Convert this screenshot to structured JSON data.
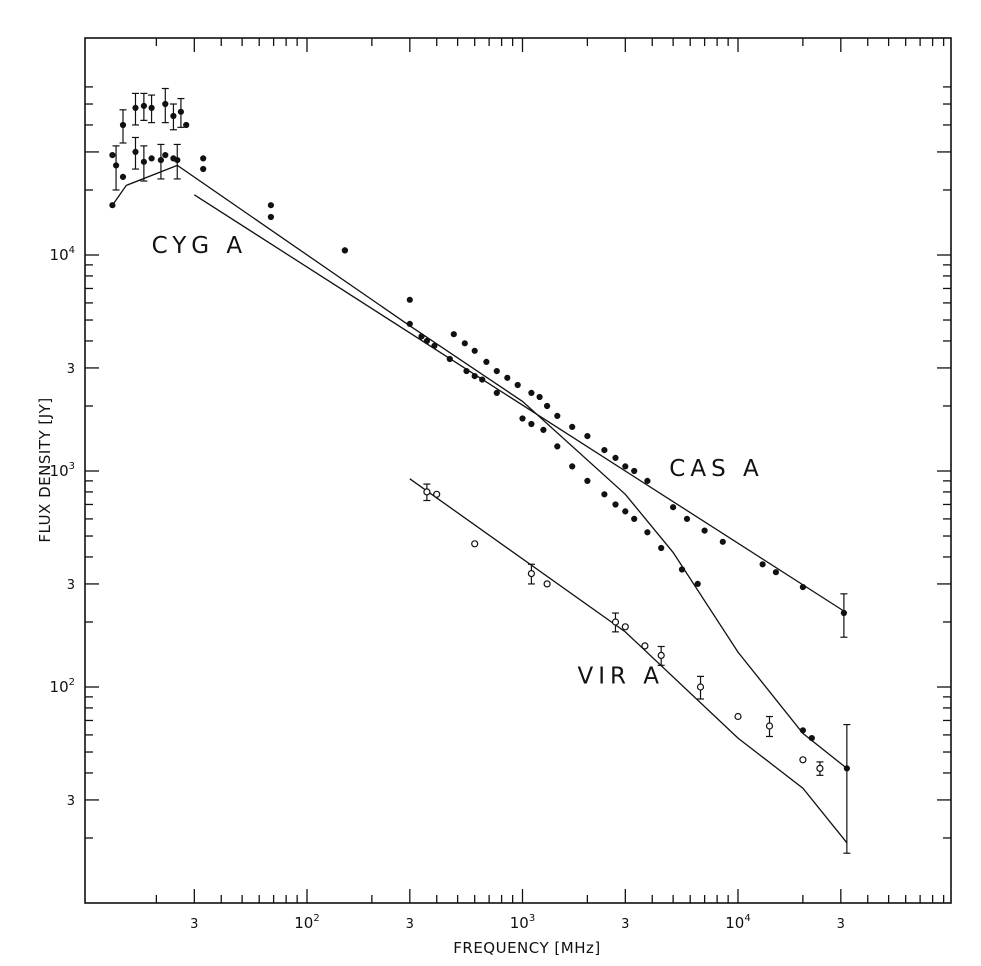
{
  "chart_data": {
    "type": "scatter",
    "xlabel": "FREQUENCY [MHz]",
    "ylabel": "FLUX DENSITY [JY]",
    "xscale": "log",
    "yscale": "log",
    "xlim": [
      12,
      1000000
    ],
    "ylim": [
      14,
      60000
    ],
    "grid": false,
    "axis_colors": {
      "ink": "#111111",
      "background": "#ffffff"
    },
    "x_major_ticks": [
      {
        "value": 30,
        "label": "3"
      },
      {
        "value": 100,
        "label": "10",
        "exp": "2"
      },
      {
        "value": 300,
        "label": "3"
      },
      {
        "value": 1000,
        "label": "10",
        "exp": "3"
      },
      {
        "value": 3000,
        "label": "3"
      },
      {
        "value": 10000,
        "label": "10",
        "exp": "4"
      },
      {
        "value": 30000,
        "label": "3"
      }
    ],
    "y_major_ticks": [
      {
        "value": 30,
        "label": "3"
      },
      {
        "value": 100,
        "label": "10",
        "exp": "2"
      },
      {
        "value": 300,
        "label": "3"
      },
      {
        "value": 1000,
        "label": "10",
        "exp": "3"
      },
      {
        "value": 3000,
        "label": "3"
      },
      {
        "value": 10000,
        "label": "10",
        "exp": "4"
      }
    ],
    "series": [
      {
        "name": "CAS A",
        "marker": "filled",
        "label_at": [
          4800,
          950
        ],
        "fit": [
          [
            30,
            19000
          ],
          [
            32000,
            220
          ]
        ],
        "points": [
          [
            12.5,
            29000
          ],
          [
            14,
            40000
          ],
          [
            16,
            48000
          ],
          [
            17.5,
            49000
          ],
          [
            19,
            48000
          ],
          [
            22,
            50000
          ],
          [
            24,
            44000
          ],
          [
            26,
            46000
          ],
          [
            27.5,
            40000
          ],
          [
            33,
            28000
          ],
          [
            68,
            17000
          ],
          [
            150,
            10500
          ],
          [
            300,
            6200
          ],
          [
            480,
            4300
          ],
          [
            540,
            3900
          ],
          [
            600,
            3600
          ],
          [
            680,
            3200
          ],
          [
            760,
            2900
          ],
          [
            850,
            2700
          ],
          [
            950,
            2500
          ],
          [
            1100,
            2300
          ],
          [
            1200,
            2200
          ],
          [
            1300,
            2000
          ],
          [
            1450,
            1800
          ],
          [
            1700,
            1600
          ],
          [
            2000,
            1450
          ],
          [
            2400,
            1250
          ],
          [
            2700,
            1150
          ],
          [
            3000,
            1050
          ],
          [
            3300,
            1000
          ],
          [
            3800,
            900
          ],
          [
            5000,
            680
          ],
          [
            5800,
            600
          ],
          [
            7000,
            530
          ],
          [
            8500,
            470
          ],
          [
            13000,
            370
          ],
          [
            15000,
            340
          ],
          [
            20000,
            290
          ],
          [
            31000,
            220
          ]
        ],
        "error_bars": [
          [
            14,
            40000,
            7000
          ],
          [
            16,
            48000,
            8000
          ],
          [
            17.5,
            49000,
            7000
          ],
          [
            19,
            48000,
            7000
          ],
          [
            22,
            50000,
            9000
          ],
          [
            24,
            44000,
            6000
          ],
          [
            26,
            46000,
            7000
          ],
          [
            31000,
            220,
            50
          ]
        ]
      },
      {
        "name": "CYG A",
        "marker": "filled",
        "label_at": [
          19,
          10200
        ],
        "fit": [
          [
            12.5,
            17000
          ],
          [
            14.5,
            21000
          ],
          [
            25,
            26000
          ],
          [
            300,
            4700
          ],
          [
            1000,
            2100
          ],
          [
            3000,
            780
          ],
          [
            5000,
            420
          ],
          [
            10000,
            145
          ],
          [
            20000,
            61
          ],
          [
            32000,
            42
          ]
        ],
        "points": [
          [
            12.5,
            17000
          ],
          [
            13,
            26000
          ],
          [
            14,
            23000
          ],
          [
            16,
            30000
          ],
          [
            17.5,
            27000
          ],
          [
            19,
            28000
          ],
          [
            21,
            27500
          ],
          [
            22,
            29000
          ],
          [
            24,
            28000
          ],
          [
            25,
            27500
          ],
          [
            33,
            25000
          ],
          [
            68,
            15000
          ],
          [
            150,
            10500
          ],
          [
            300,
            4800
          ],
          [
            340,
            4200
          ],
          [
            360,
            4000
          ],
          [
            390,
            3800
          ],
          [
            460,
            3300
          ],
          [
            550,
            2900
          ],
          [
            600,
            2750
          ],
          [
            650,
            2650
          ],
          [
            760,
            2300
          ],
          [
            1000,
            1750
          ],
          [
            1100,
            1650
          ],
          [
            1250,
            1550
          ],
          [
            1450,
            1300
          ],
          [
            1700,
            1050
          ],
          [
            2000,
            900
          ],
          [
            2400,
            780
          ],
          [
            2700,
            700
          ],
          [
            3000,
            650
          ],
          [
            3300,
            600
          ],
          [
            3800,
            520
          ],
          [
            4400,
            440
          ],
          [
            5500,
            350
          ],
          [
            6500,
            300
          ],
          [
            20000,
            63
          ],
          [
            22000,
            58
          ],
          [
            32000,
            42
          ]
        ],
        "error_bars": [
          [
            13,
            26000,
            6000
          ],
          [
            16,
            30000,
            5000
          ],
          [
            17.5,
            27000,
            5000
          ],
          [
            21,
            27500,
            5000
          ],
          [
            25,
            27500,
            5000
          ],
          [
            32000,
            42,
            25
          ]
        ]
      },
      {
        "name": "VIR A",
        "marker": "open",
        "label_at": [
          1800,
          104
        ],
        "fit": [
          [
            300,
            920
          ],
          [
            3000,
            180
          ],
          [
            10000,
            58
          ],
          [
            20000,
            34
          ],
          [
            32000,
            19
          ]
        ],
        "points": [
          [
            360,
            800
          ],
          [
            400,
            780
          ],
          [
            600,
            460
          ],
          [
            1100,
            335
          ],
          [
            1300,
            300
          ],
          [
            2700,
            200
          ],
          [
            3000,
            190
          ],
          [
            3700,
            155
          ],
          [
            4400,
            140
          ],
          [
            6700,
            100
          ],
          [
            10000,
            73
          ],
          [
            14000,
            66
          ],
          [
            20000,
            46
          ],
          [
            24000,
            42
          ]
        ],
        "error_bars": [
          [
            360,
            800,
            70
          ],
          [
            1100,
            335,
            35
          ],
          [
            2700,
            200,
            20
          ],
          [
            4400,
            140,
            14
          ],
          [
            6700,
            100,
            12
          ],
          [
            14000,
            66,
            7
          ],
          [
            24000,
            42,
            3
          ]
        ]
      }
    ]
  }
}
